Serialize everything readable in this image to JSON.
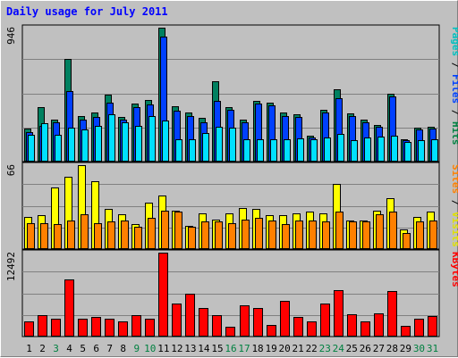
{
  "chart_data": {
    "type": "bar",
    "title": "Daily usage for July 2011",
    "x": [
      "1",
      "2",
      "3",
      "4",
      "5",
      "6",
      "7",
      "8",
      "9",
      "10",
      "11",
      "12",
      "13",
      "14",
      "15",
      "16",
      "17",
      "18",
      "19",
      "20",
      "21",
      "22",
      "23",
      "24",
      "25",
      "26",
      "27",
      "28",
      "29",
      "30",
      "31"
    ],
    "x_colors": [
      "#000000",
      "#000000",
      "#008040",
      "#000000",
      "#000000",
      "#000000",
      "#000000",
      "#000000",
      "#008040",
      "#008040",
      "#000000",
      "#000000",
      "#000000",
      "#000000",
      "#000000",
      "#008040",
      "#008040",
      "#000000",
      "#000000",
      "#000000",
      "#000000",
      "#000000",
      "#008040",
      "#008040",
      "#000000",
      "#000000",
      "#000000",
      "#000000",
      "#000000",
      "#008040",
      "#008040"
    ],
    "panels": [
      {
        "name": "hits-files-pages",
        "max_label": "946",
        "ymax": 946,
        "series_labels": [
          {
            "text": "Pages",
            "color": "#00c0c0"
          },
          {
            "text": "Files",
            "color": "#0040ff"
          },
          {
            "text": "Hits",
            "color": "#008040"
          }
        ],
        "series": [
          {
            "name": "Hits",
            "color": "#008060",
            "values": [
              226,
              380,
              290,
              725,
              315,
              340,
              472,
              310,
              405,
              430,
              946,
              385,
              340,
              305,
              568,
              380,
              295,
              425,
              410,
              345,
              330,
              175,
              360,
              505,
              335,
              295,
              255,
              475,
              155,
              235,
              240
            ]
          },
          {
            "name": "Files",
            "color": "#0040ff",
            "values": [
              200,
              250,
              270,
              495,
              290,
              310,
              415,
              290,
              380,
              400,
              880,
              355,
              315,
              275,
              425,
              360,
              275,
              405,
              395,
              320,
              310,
              165,
              340,
              445,
              315,
              275,
              240,
              460,
              145,
              220,
              230
            ]
          },
          {
            "name": "Pages",
            "color": "#00e0ff",
            "values": [
              185,
              265,
              185,
              235,
              225,
              250,
              330,
              270,
              250,
              315,
              285,
              155,
              155,
              195,
              240,
              235,
              155,
              155,
              150,
              150,
              160,
              150,
              165,
              190,
              145,
              165,
              170,
              175,
              135,
              145,
              150
            ]
          }
        ]
      },
      {
        "name": "visits-sites",
        "max_label": "66",
        "ymax": 66,
        "series_labels": [
          {
            "text": "Sites",
            "color": "#ff8000"
          },
          {
            "text": "Visits",
            "color": "#e0e000"
          }
        ],
        "series": [
          {
            "name": "Visits",
            "color": "#ffff00",
            "values": [
              25,
              26,
              48,
              57,
              66,
              53,
              31,
              27,
              19,
              36,
              42,
              30,
              18,
              28,
              23,
              28,
              32,
              31,
              26,
              26,
              28,
              29,
              28,
              51,
              22,
              22,
              30,
              40,
              15,
              25,
              29
            ]
          },
          {
            "name": "Sites",
            "color": "#ff8000",
            "values": [
              20,
              20,
              19,
              22,
              27,
              20,
              21,
              22,
              17,
              24,
              30,
              29,
              17,
              21,
              21,
              20,
              23,
              24,
              22,
              19,
              22,
              22,
              21,
              29,
              21,
              21,
              27,
              29,
              12,
              21,
              22
            ]
          }
        ]
      },
      {
        "name": "kbytes",
        "max_label": "12492",
        "ymax": 12492,
        "series_labels": [
          {
            "text": "KBytes",
            "color": "#ff0000"
          }
        ],
        "series": [
          {
            "name": "KBytes",
            "color": "#ff0000",
            "values": [
              2200,
              3100,
              2500,
              8500,
              2500,
              2800,
              2600,
              2100,
              3100,
              2600,
              12492,
              4900,
              6300,
              4100,
              3100,
              1400,
              4500,
              4200,
              1600,
              5200,
              2800,
              2200,
              4900,
              6800,
              3200,
              2100,
              3300,
              6700,
              1500,
              2600,
              3000
            ]
          }
        ]
      }
    ]
  }
}
